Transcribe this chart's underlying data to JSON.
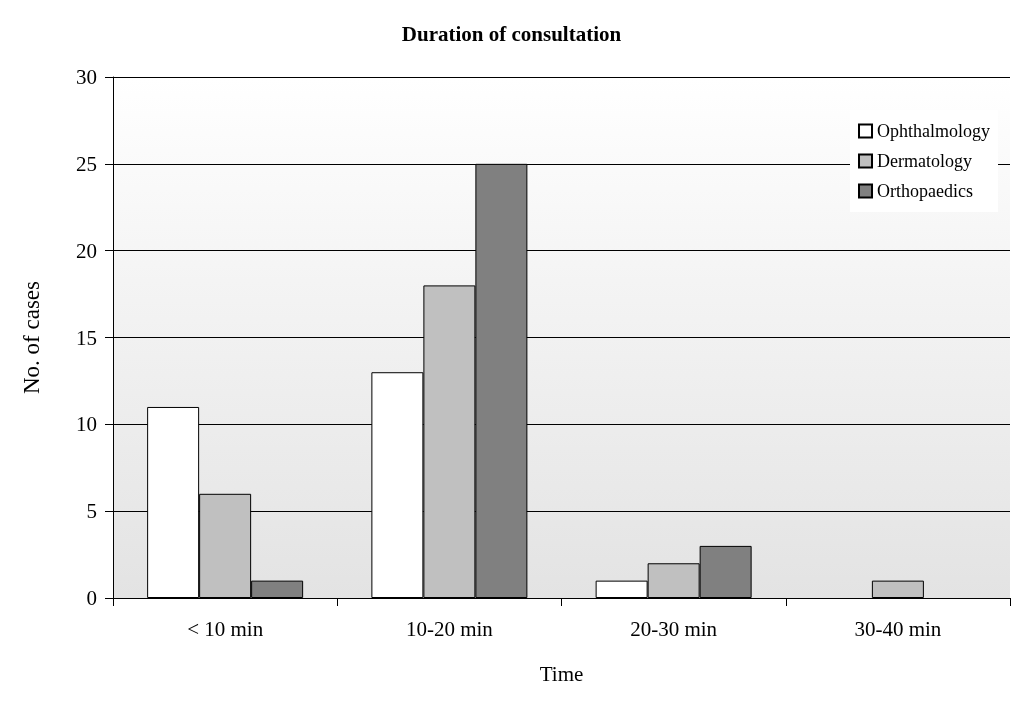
{
  "chart_data": {
    "type": "bar",
    "title": "Duration of consultation",
    "xlabel": "Time",
    "ylabel": "No. of cases",
    "categories": [
      "< 10 min",
      "10-20 min",
      "20-30 min",
      "30-40 min"
    ],
    "series": [
      {
        "name": "Ophthalmology",
        "color": "#ffffff",
        "values": [
          11,
          13,
          1,
          0
        ]
      },
      {
        "name": "Dermatology",
        "color": "#c0c0c0",
        "values": [
          6,
          18,
          2,
          1
        ]
      },
      {
        "name": "Orthopaedics",
        "color": "#808080",
        "values": [
          1,
          25,
          3,
          0
        ]
      }
    ],
    "ylim": [
      0,
      30
    ],
    "yticks": [
      0,
      5,
      10,
      15,
      20,
      25,
      30
    ],
    "grid": "y",
    "legend": "top right"
  }
}
